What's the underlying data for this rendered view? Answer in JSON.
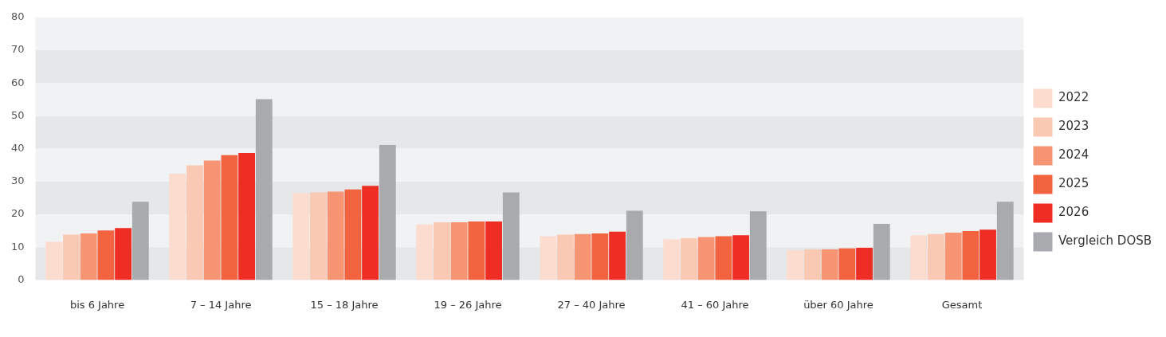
{
  "chart_data": {
    "type": "bar",
    "categories": [
      "bis 6 Jahre",
      "7 – 14 Jahre",
      "15 – 18 Jahre",
      "19 – 26 Jahre",
      "27 – 40 Jahre",
      "41 – 60 Jahre",
      "über 60 Jahre",
      "Gesamt"
    ],
    "series": [
      {
        "name": "2022",
        "color": "#fcdccf",
        "values": [
          11.6,
          32.4,
          26.4,
          16.9,
          13.3,
          12.4,
          9.1,
          13.6
        ]
      },
      {
        "name": "2023",
        "color": "#fac9b3",
        "values": [
          13.8,
          34.9,
          26.7,
          17.6,
          13.8,
          12.7,
          9.3,
          14.0
        ]
      },
      {
        "name": "2024",
        "color": "#f69474",
        "values": [
          14.2,
          36.4,
          26.9,
          17.6,
          14.0,
          13.1,
          9.3,
          14.4
        ]
      },
      {
        "name": "2025",
        "color": "#f26440",
        "values": [
          15.1,
          38.0,
          27.6,
          17.8,
          14.2,
          13.3,
          9.6,
          14.9
        ]
      },
      {
        "name": "2026",
        "color": "#ee2e24",
        "values": [
          15.8,
          38.7,
          28.7,
          17.8,
          14.7,
          13.6,
          9.8,
          15.3
        ]
      },
      {
        "name": "Vergleich DOSB",
        "color": "#a9aaad",
        "values": [
          23.8,
          55.1,
          41.1,
          26.7,
          21.1,
          20.9,
          17.1,
          23.8
        ]
      }
    ],
    "ylim": [
      0,
      80
    ],
    "yticks": [
      0,
      10,
      20,
      30,
      40,
      50,
      60,
      70,
      80
    ],
    "bands": [
      {
        "axis": "y",
        "from": 0,
        "to": 10,
        "color": "#e6e7e9"
      },
      {
        "axis": "y",
        "from": 10,
        "to": 20,
        "color": "#f1f2f4"
      },
      {
        "axis": "y",
        "from": 20,
        "to": 30,
        "color": "#e6e7e9"
      },
      {
        "axis": "y",
        "from": 30,
        "to": 40,
        "color": "#f1f2f4"
      },
      {
        "axis": "y",
        "from": 40,
        "to": 50,
        "color": "#e6e7e9"
      },
      {
        "axis": "y",
        "from": 50,
        "to": 60,
        "color": "#f1f2f4"
      },
      {
        "axis": "y",
        "from": 60,
        "to": 70,
        "color": "#e6e7e9"
      },
      {
        "axis": "y",
        "from": 70,
        "to": 80,
        "color": "#f1f2f4"
      }
    ],
    "legend": "right"
  }
}
